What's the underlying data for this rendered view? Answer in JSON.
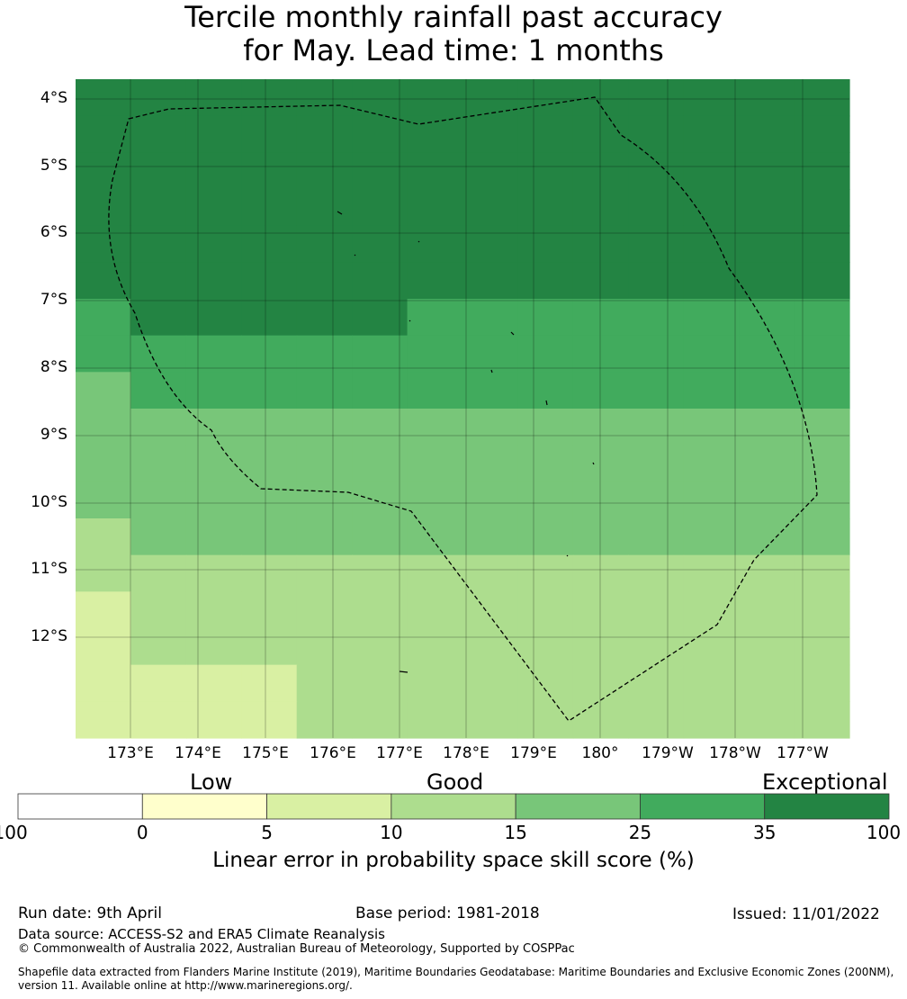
{
  "title_line1": "Tercile monthly rainfall past accuracy",
  "title_line2": "for May. Lead time: 1 months",
  "lat_labels": [
    "4°S",
    "5°S",
    "6°S",
    "7°S",
    "8°S",
    "9°S",
    "10°S",
    "11°S",
    "12°S"
  ],
  "lon_labels": [
    "173°E",
    "174°E",
    "175°E",
    "176°E",
    "177°E",
    "178°E",
    "179°E",
    "180°",
    "179°W",
    "178°W",
    "177°W"
  ],
  "colorbar": {
    "categories": [
      "Low",
      "Good",
      "Exceptional"
    ],
    "ticks": [
      "-100",
      "0",
      "5",
      "10",
      "15",
      "25",
      "35",
      "100"
    ],
    "colors": [
      "#ffffff",
      "#ffffcc",
      "#d9f0a3",
      "#addd8e",
      "#78c679",
      "#41ab5d",
      "#238443"
    ],
    "label": "Linear error in probability space skill score (%)"
  },
  "grid_classes": [
    "66666666666666",
    "66666666666666",
    "66666666666666",
    "66666666666666",
    "66666666666666",
    "66666666666666",
    "56666655555555",
    "55555555555555",
    "45555555555555",
    "44444444444444",
    "44444444444444",
    "44444444444444",
    "34444444444444",
    "33333333333333",
    "23333333333333",
    "23333333333333",
    "22223333333333",
    "22223333333333"
  ],
  "footer": {
    "run_date": "Run date: 9th April",
    "base_period": "Base period: 1981-2018",
    "issued": "Issued: 11/01/2022",
    "data_source": "Data source: ACCESS-S2 and ERA5 Climate Reanalysis",
    "copyright": "© Commonwealth of Australia 2022, Australian Bureau of Meteorology, Supported by COSPPac",
    "shapefile_line1": "Shapefile data extracted from Flanders Marine Institute (2019), Maritime Boundaries Geodatabase: Maritime Boundaries and Exclusive Economic Zones (200NM),",
    "shapefile_line2": "version 11. Available online at http://www.marineregions.org/."
  }
}
